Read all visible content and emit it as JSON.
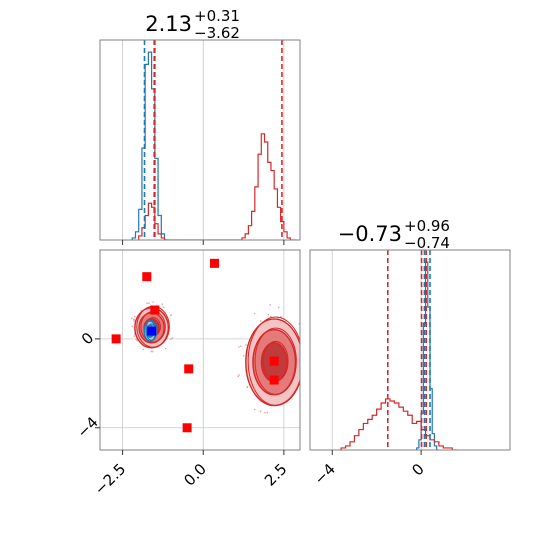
{
  "chart_data": [
    {
      "type": "histogram",
      "panel": "corner-top-left",
      "title": {
        "main": "2.13",
        "sup": "+0.31",
        "sub": "−3.62"
      },
      "x_range": [
        -3.2,
        3.0
      ],
      "grid": true,
      "series": [
        {
          "name": "",
          "color": "#1f77b4",
          "bin_edges": [
            -2.2,
            -2.1,
            -2.0,
            -1.9,
            -1.8,
            -1.7,
            -1.6,
            -1.5,
            -1.4,
            -1.3,
            -1.2,
            -1.1
          ],
          "heights": [
            0.01,
            0.04,
            0.15,
            0.45,
            0.86,
            0.92,
            0.74,
            0.4,
            0.12,
            0.03,
            0.0
          ]
        },
        {
          "name": "",
          "color": "#d62728",
          "bin_edges": [
            -2.0,
            -1.9,
            -1.8,
            -1.7,
            -1.6,
            -1.5,
            -1.4,
            -1.3,
            -1.2,
            -1.1,
            -1.0,
            1.2,
            1.3,
            1.4,
            1.5,
            1.6,
            1.7,
            1.8,
            1.9,
            2.0,
            2.1,
            2.2,
            2.3,
            2.4,
            2.5,
            2.6,
            2.7,
            2.8,
            2.9
          ],
          "heights": [
            0.02,
            0.06,
            0.12,
            0.18,
            0.16,
            0.08,
            0.03,
            0.01,
            0.0,
            0.0,
            0.0,
            0.01,
            0.03,
            0.07,
            0.14,
            0.26,
            0.42,
            0.52,
            0.48,
            0.38,
            0.34,
            0.25,
            0.16,
            0.09,
            0.04,
            0.01,
            0.0,
            0.0
          ]
        }
      ],
      "vlines": [
        {
          "x": -1.82,
          "color": "#1f77b4"
        },
        {
          "x": -1.52,
          "color": "#1f77b4"
        },
        {
          "x": -1.5,
          "color": "#d62728"
        },
        {
          "x": 2.44,
          "color": "#d62728"
        }
      ]
    },
    {
      "type": "scatter",
      "panel": "corner-bottom-left",
      "x_range": [
        -3.2,
        3.0
      ],
      "y_range": [
        -5.0,
        4.0
      ],
      "grid": true,
      "x_ticks": [
        {
          "value": -2.5,
          "label": "−2.5"
        },
        {
          "value": 0.0,
          "label": "0.0"
        },
        {
          "value": 2.5,
          "label": "2.5"
        }
      ],
      "y_ticks": [
        {
          "value": 0,
          "label": "0"
        },
        {
          "value": -4,
          "label": "−4"
        }
      ],
      "contours": [
        {
          "name": "",
          "color": "#d62728",
          "center": [
            -1.6,
            0.5
          ],
          "radii": [
            0.52,
            0.9
          ],
          "levels": [
            0.45,
            0.75,
            1.0
          ]
        },
        {
          "name": "",
          "color": "#d62728",
          "center": [
            2.2,
            -1.05
          ],
          "radii": [
            0.88,
            1.95
          ],
          "levels": [
            0.45,
            0.75,
            1.0
          ]
        },
        {
          "name": "",
          "color": "#1f77b4",
          "center": [
            -1.65,
            0.35
          ],
          "radii": [
            0.18,
            0.45
          ],
          "levels": [
            0.6,
            1.0
          ]
        }
      ],
      "points": [
        {
          "x": -1.75,
          "y": 2.8,
          "color": "#ff0000"
        },
        {
          "x": 0.35,
          "y": 3.4,
          "color": "#ff0000"
        },
        {
          "x": -1.5,
          "y": 1.3,
          "color": "#ff0000"
        },
        {
          "x": -2.7,
          "y": 0.0,
          "color": "#ff0000"
        },
        {
          "x": -0.45,
          "y": -1.35,
          "color": "#ff0000"
        },
        {
          "x": 2.2,
          "y": -1.0,
          "color": "#ff0000"
        },
        {
          "x": 2.2,
          "y": -1.85,
          "color": "#ff0000"
        },
        {
          "x": -0.5,
          "y": -4.0,
          "color": "#ff0000"
        },
        {
          "x": -1.6,
          "y": 0.35,
          "color": "#0000ff"
        }
      ]
    },
    {
      "type": "histogram",
      "panel": "corner-bottom-right",
      "title": {
        "main": "−0.73",
        "sup": "+0.96",
        "sub": "−0.74"
      },
      "x_range": [
        -5.0,
        4.0
      ],
      "grid": true,
      "x_ticks": [
        {
          "value": -4,
          "label": "−4"
        },
        {
          "value": 0,
          "label": "0"
        }
      ],
      "series": [
        {
          "name": "",
          "color": "#1f77b4",
          "bin_edges": [
            -0.2,
            -0.1,
            0.0,
            0.1,
            0.2,
            0.3,
            0.4,
            0.5,
            0.6,
            0.7,
            0.8
          ],
          "heights": [
            0.01,
            0.05,
            0.18,
            0.62,
            0.92,
            0.7,
            0.3,
            0.08,
            0.02,
            0.0
          ]
        },
        {
          "name": "",
          "color": "#d62728",
          "bin_edges": [
            -3.6,
            -3.4,
            -3.2,
            -3.0,
            -2.8,
            -2.6,
            -2.4,
            -2.2,
            -2.0,
            -1.8,
            -1.6,
            -1.4,
            -1.2,
            -1.0,
            -0.8,
            -0.6,
            -0.4,
            -0.2,
            0.0,
            0.2,
            0.4,
            0.6,
            0.8,
            1.0,
            1.2,
            1.4,
            1.6
          ],
          "heights": [
            0.01,
            0.02,
            0.04,
            0.07,
            0.1,
            0.13,
            0.15,
            0.17,
            0.2,
            0.23,
            0.25,
            0.24,
            0.23,
            0.21,
            0.19,
            0.17,
            0.13,
            0.14,
            0.1,
            0.07,
            0.05,
            0.04,
            0.02,
            0.01,
            0.01,
            0.0
          ]
        }
      ],
      "vlines": [
        {
          "x": -1.5,
          "color": "#d62728"
        },
        {
          "x": 0.02,
          "color": "#d62728"
        },
        {
          "x": 0.15,
          "color": "#1f77b4"
        },
        {
          "x": 0.4,
          "color": "#1f77b4"
        },
        {
          "x": 0.23,
          "color": "#d62728"
        }
      ]
    }
  ]
}
